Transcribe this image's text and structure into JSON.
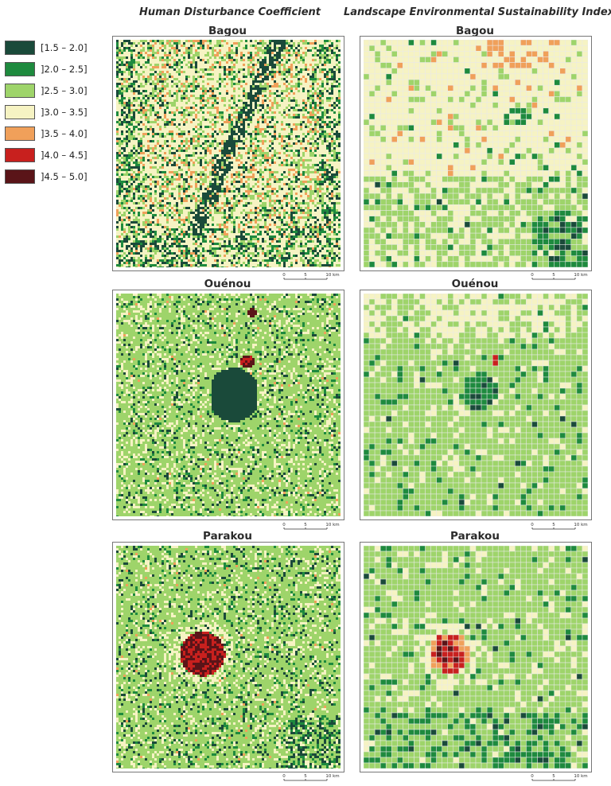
{
  "columns": {
    "left_title": "Human Disturbance Coefficient",
    "right_title": "Landscape Environmental Sustainability Index"
  },
  "legend": {
    "items": [
      {
        "label": "[1.5 – 2.0]",
        "color": "#1a4a3a"
      },
      {
        "label": "]2.0 – 2.5]",
        "color": "#1e8a3e"
      },
      {
        "label": "]2.5 – 3.0]",
        "color": "#9ed46a"
      },
      {
        "label": "]3.0 – 3.5]",
        "color": "#f6f3c3"
      },
      {
        "label": "]3.5 – 4.0]",
        "color": "#f0a05a"
      },
      {
        "label": "]4.0 – 4.5]",
        "color": "#c8201e"
      },
      {
        "label": "]4.5 – 5.0]",
        "color": "#5a1418"
      }
    ]
  },
  "maps": [
    {
      "name": "Bagou"
    },
    {
      "name": "Ouénou"
    },
    {
      "name": "Parakou"
    }
  ],
  "scale": {
    "t0": "0",
    "t5": "5",
    "t10": "10 km"
  }
}
